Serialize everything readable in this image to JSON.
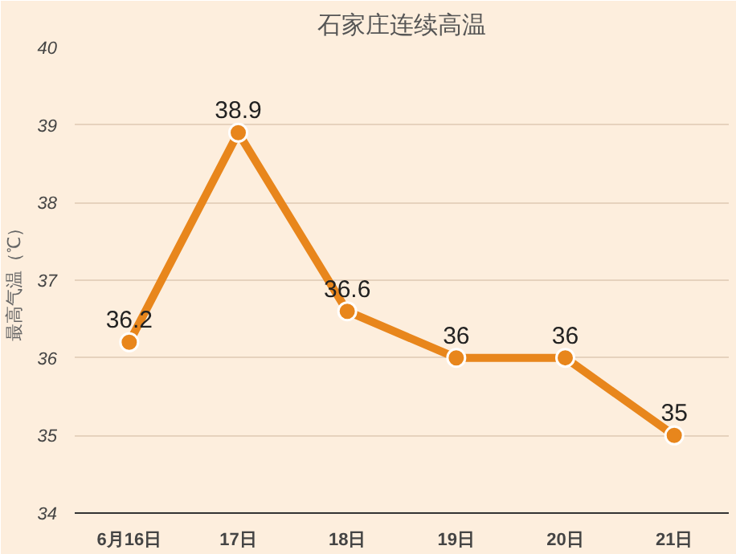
{
  "chart_data": {
    "type": "line",
    "title": "石家庄连续高温",
    "ylabel": "最高气温（℃）",
    "categories": [
      "6月16日",
      "17日",
      "18日",
      "19日",
      "20日",
      "21日"
    ],
    "series": [
      {
        "color": "#e8861c",
        "values": [
          36.2,
          38.9,
          36.6,
          36,
          36,
          35
        ]
      }
    ],
    "ylim": [
      34,
      40
    ],
    "yticks": [
      34,
      35,
      36,
      37,
      38,
      39,
      40
    ],
    "grid": "y",
    "marker": "circle",
    "line_style": "solid",
    "data_labels": true
  }
}
